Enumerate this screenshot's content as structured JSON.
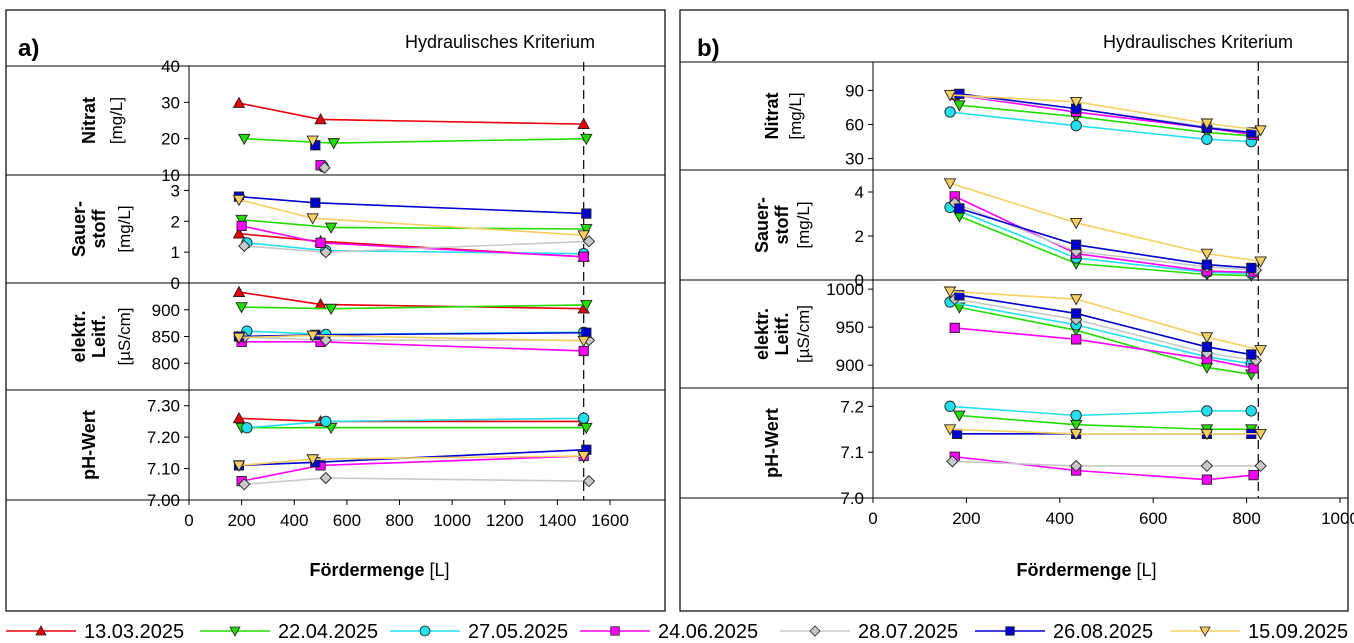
{
  "colors": {
    "13.03.2025": "#e8000b",
    "22.04.2025": "#22dd00",
    "27.05.2025": "#22e0f0",
    "24.06.2025": "#ff00ff",
    "28.07.2025": "#c8c8c8",
    "26.08.2025": "#0000d0",
    "15.09.2025": "#f5d060"
  },
  "markers": {
    "13.03.2025": "triangle-up",
    "22.04.2025": "triangle-down",
    "27.05.2025": "circle",
    "24.06.2025": "square",
    "28.07.2025": "diamond",
    "26.08.2025": "square",
    "15.09.2025": "triangle-down"
  },
  "legend": [
    "13.03.2025",
    "22.04.2025",
    "27.05.2025",
    "24.06.2025",
    "28.07.2025",
    "26.08.2025",
    "15.09.2025"
  ],
  "chart_data": [
    {
      "panel_label": "a)",
      "annotation": "Hydraulisches Kriterium",
      "criterion_x": 1500,
      "xlabel_bold": "Fördermenge",
      "xlabel_unit": "[L]",
      "xlim": [
        0,
        1600
      ],
      "xticks": [
        "0",
        "200",
        "400",
        "600",
        "800",
        "1000",
        "1200",
        "1400",
        "1600"
      ],
      "subplots": [
        {
          "type": "line",
          "ylabel_bold": "Nitrat",
          "ylabel_unit": "[mg/L]",
          "ylim": [
            10,
            40
          ],
          "yticks": [
            "40",
            "30",
            "20",
            "10"
          ],
          "series": [
            {
              "name": "13.03.2025",
              "x": [
                190,
                500,
                1500
              ],
              "y": [
                29.8,
                25.3,
                24
              ]
            },
            {
              "name": "22.04.2025",
              "x": [
                210,
                550,
                1510
              ],
              "y": [
                20,
                18.8,
                20
              ]
            },
            {
              "name": "27.05.2025",
              "x": [
                510
              ],
              "y": [
                12.3
              ]
            },
            {
              "name": "24.06.2025",
              "x": [
                500
              ],
              "y": [
                12.7
              ]
            },
            {
              "name": "28.07.2025",
              "x": [
                515
              ],
              "y": [
                12
              ]
            },
            {
              "name": "26.08.2025",
              "x": [
                480
              ],
              "y": [
                18.2
              ]
            },
            {
              "name": "15.09.2025",
              "x": [
                470
              ],
              "y": [
                19.5
              ]
            }
          ]
        },
        {
          "type": "line",
          "ylabel_bold": "Sauer-\nstoff",
          "ylabel_unit": "[mg/L]",
          "ylim": [
            0,
            3.5
          ],
          "yticks": [
            "3",
            "2",
            "1",
            "0"
          ],
          "series": [
            {
              "name": "13.03.2025",
              "x": [
                190,
                500,
                1500
              ],
              "y": [
                1.6,
                1.35,
                0.85
              ]
            },
            {
              "name": "22.04.2025",
              "x": [
                200,
                540,
                1510
              ],
              "y": [
                2.05,
                1.8,
                1.75
              ]
            },
            {
              "name": "27.05.2025",
              "x": [
                220,
                520,
                1500
              ],
              "y": [
                1.3,
                1.05,
                0.95
              ]
            },
            {
              "name": "24.06.2025",
              "x": [
                200,
                500,
                1500
              ],
              "y": [
                1.85,
                1.3,
                0.85
              ]
            },
            {
              "name": "28.07.2025",
              "x": [
                210,
                520,
                1520
              ],
              "y": [
                1.2,
                1.0,
                1.35
              ]
            },
            {
              "name": "26.08.2025",
              "x": [
                190,
                480,
                1510
              ],
              "y": [
                2.8,
                2.6,
                2.25
              ]
            },
            {
              "name": "15.09.2025",
              "x": [
                190,
                470,
                1500
              ],
              "y": [
                2.7,
                2.1,
                1.55
              ]
            }
          ]
        },
        {
          "type": "line",
          "ylabel_bold": "elektr.\nLeitf.",
          "ylabel_unit": "[µS/cm]",
          "ylim": [
            750,
            950
          ],
          "yticks": [
            "900",
            "850",
            "800"
          ],
          "series": [
            {
              "name": "13.03.2025",
              "x": [
                190,
                500,
                1500
              ],
              "y": [
                933,
                910,
                902
              ]
            },
            {
              "name": "22.04.2025",
              "x": [
                200,
                540,
                1510
              ],
              "y": [
                905,
                902,
                909
              ]
            },
            {
              "name": "27.05.2025",
              "x": [
                220,
                520,
                1500
              ],
              "y": [
                860,
                854,
                858
              ]
            },
            {
              "name": "24.06.2025",
              "x": [
                200,
                500,
                1500
              ],
              "y": [
                840,
                840,
                823
              ]
            },
            {
              "name": "28.07.2025",
              "x": [
                210,
                520,
                1520
              ],
              "y": [
                849,
                843,
                843
              ]
            },
            {
              "name": "26.08.2025",
              "x": [
                190,
                480,
                1510
              ],
              "y": [
                850,
                853,
                857
              ]
            },
            {
              "name": "15.09.2025",
              "x": [
                190,
                470,
                1500
              ],
              "y": [
                848,
                852,
                842
              ]
            }
          ]
        },
        {
          "type": "line",
          "ylabel_bold": "pH-Wert",
          "ylabel_unit": "",
          "ylim": [
            7.0,
            7.35
          ],
          "yticks": [
            "7.30",
            "7.20",
            "7.10",
            "7.00"
          ],
          "series": [
            {
              "name": "13.03.2025",
              "x": [
                190,
                500,
                1500
              ],
              "y": [
                7.26,
                7.25,
                7.25
              ]
            },
            {
              "name": "22.04.2025",
              "x": [
                200,
                540,
                1510
              ],
              "y": [
                7.23,
                7.23,
                7.23
              ]
            },
            {
              "name": "27.05.2025",
              "x": [
                220,
                520,
                1500
              ],
              "y": [
                7.23,
                7.25,
                7.26
              ]
            },
            {
              "name": "24.06.2025",
              "x": [
                200,
                500,
                1500
              ],
              "y": [
                7.06,
                7.11,
                7.14
              ]
            },
            {
              "name": "28.07.2025",
              "x": [
                210,
                520,
                1520
              ],
              "y": [
                7.05,
                7.07,
                7.06
              ]
            },
            {
              "name": "26.08.2025",
              "x": [
                190,
                480,
                1510
              ],
              "y": [
                7.11,
                7.12,
                7.16
              ]
            },
            {
              "name": "15.09.2025",
              "x": [
                190,
                470,
                1500
              ],
              "y": [
                7.11,
                7.13,
                7.14
              ]
            }
          ]
        }
      ]
    },
    {
      "panel_label": "b)",
      "annotation": "Hydraulisches Kriterium",
      "criterion_x": 825,
      "xlabel_bold": "Fördermenge",
      "xlabel_unit": "[L]",
      "xlim": [
        0,
        1000
      ],
      "xticks": [
        "0",
        "200",
        "400",
        "600",
        "800",
        "1000"
      ],
      "subplots": [
        {
          "type": "line",
          "ylabel_bold": "Nitrat",
          "ylabel_unit": "[mg/L]",
          "ylim": [
            20,
            115
          ],
          "yticks": [
            "90",
            "60",
            "30"
          ],
          "series": [
            {
              "name": "22.04.2025",
              "x": [
                185,
                435,
                715,
                810
              ],
              "y": [
                77,
                67,
                53,
                50
              ]
            },
            {
              "name": "27.05.2025",
              "x": [
                165,
                435,
                715,
                810
              ],
              "y": [
                71,
                59,
                47,
                45
              ]
            },
            {
              "name": "24.06.2025",
              "x": [
                175,
                435,
                715,
                815
              ],
              "y": [
                86,
                71,
                57,
                51
              ]
            },
            {
              "name": "28.07.2025",
              "x": [
                175,
                435,
                715,
                820
              ],
              "y": [
                86,
                74,
                58,
                53
              ]
            },
            {
              "name": "26.08.2025",
              "x": [
                185,
                435,
                715,
                810
              ],
              "y": [
                87,
                74,
                57,
                53
              ]
            },
            {
              "name": "15.09.2025",
              "x": [
                165,
                435,
                715,
                830
              ],
              "y": [
                86,
                80,
                61,
                55
              ]
            }
          ]
        },
        {
          "type": "line",
          "ylabel_bold": "Sauer-\nstoff",
          "ylabel_unit": "[mg/L]",
          "ylim": [
            0,
            5
          ],
          "yticks": [
            "4",
            "2",
            "0"
          ],
          "series": [
            {
              "name": "22.04.2025",
              "x": [
                185,
                435,
                715,
                810
              ],
              "y": [
                2.9,
                0.75,
                0.25,
                0.2
              ]
            },
            {
              "name": "27.05.2025",
              "x": [
                165,
                435,
                715,
                810
              ],
              "y": [
                3.3,
                1.0,
                0.35,
                0.3
              ]
            },
            {
              "name": "24.06.2025",
              "x": [
                175,
                435,
                715,
                815
              ],
              "y": [
                3.8,
                1.2,
                0.4,
                0.35
              ]
            },
            {
              "name": "28.07.2025",
              "x": [
                175,
                435,
                715,
                820
              ],
              "y": [
                3.5,
                1.3,
                0.6,
                0.45
              ]
            },
            {
              "name": "26.08.2025",
              "x": [
                185,
                435,
                715,
                810
              ],
              "y": [
                3.25,
                1.6,
                0.7,
                0.55
              ]
            },
            {
              "name": "15.09.2025",
              "x": [
                165,
                435,
                715,
                830
              ],
              "y": [
                4.4,
                2.6,
                1.2,
                0.85
              ]
            }
          ]
        },
        {
          "type": "line",
          "ylabel_bold": "elektr.\nLeitf.",
          "ylabel_unit": "[µS/cm]",
          "ylim": [
            870,
            1012
          ],
          "yticks": [
            "1000",
            "950",
            "900"
          ],
          "series": [
            {
              "name": "22.04.2025",
              "x": [
                185,
                435,
                715,
                810
              ],
              "y": [
                976,
                946,
                897,
                888
              ]
            },
            {
              "name": "27.05.2025",
              "x": [
                165,
                435,
                715,
                810
              ],
              "y": [
                983,
                953,
                911,
                902
              ]
            },
            {
              "name": "24.06.2025",
              "x": [
                175,
                435,
                715,
                815
              ],
              "y": [
                949,
                934,
                908,
                896
              ]
            },
            {
              "name": "28.07.2025",
              "x": [
                175,
                435,
                715,
                820
              ],
              "y": [
                987,
                960,
                916,
                906
              ]
            },
            {
              "name": "26.08.2025",
              "x": [
                185,
                435,
                715,
                810
              ],
              "y": [
                992,
                968,
                924,
                914
              ]
            },
            {
              "name": "15.09.2025",
              "x": [
                165,
                435,
                715,
                830
              ],
              "y": [
                997,
                987,
                937,
                920
              ]
            }
          ]
        },
        {
          "type": "line",
          "ylabel_bold": "pH-Wert",
          "ylabel_unit": "",
          "ylim": [
            7.0,
            7.24
          ],
          "yticks": [
            "7.2",
            "7.1",
            "7.0"
          ],
          "series": [
            {
              "name": "22.04.2025",
              "x": [
                185,
                435,
                715,
                810
              ],
              "y": [
                7.18,
                7.16,
                7.15,
                7.15
              ]
            },
            {
              "name": "27.05.2025",
              "x": [
                165,
                435,
                715,
                810
              ],
              "y": [
                7.2,
                7.18,
                7.19,
                7.19
              ]
            },
            {
              "name": "24.06.2025",
              "x": [
                175,
                435,
                715,
                815
              ],
              "y": [
                7.09,
                7.06,
                7.04,
                7.05
              ]
            },
            {
              "name": "28.07.2025",
              "x": [
                170,
                435,
                715,
                830
              ],
              "y": [
                7.08,
                7.07,
                7.07,
                7.07
              ]
            },
            {
              "name": "26.08.2025",
              "x": [
                180,
                435,
                715,
                810
              ],
              "y": [
                7.14,
                7.14,
                7.14,
                7.14
              ]
            },
            {
              "name": "15.09.2025",
              "x": [
                165,
                435,
                715,
                830
              ],
              "y": [
                7.15,
                7.14,
                7.14,
                7.14
              ]
            }
          ]
        }
      ]
    }
  ]
}
